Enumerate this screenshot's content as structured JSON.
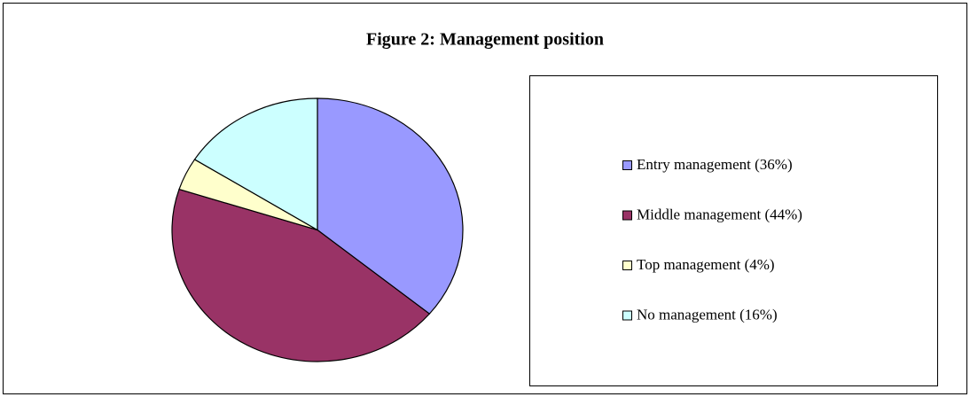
{
  "chart_data": {
    "type": "pie",
    "title": "Figure 2: Management position",
    "categories": [
      "Entry management",
      "Middle management",
      "Top management",
      "No management"
    ],
    "values": [
      36,
      44,
      4,
      16
    ],
    "value_labels": [
      "(36%)",
      "(44%)",
      "(4%)",
      "(16%)"
    ],
    "colors": [
      "#9999ff",
      "#993366",
      "#ffffcc",
      "#ccffff"
    ],
    "legend": "right"
  }
}
